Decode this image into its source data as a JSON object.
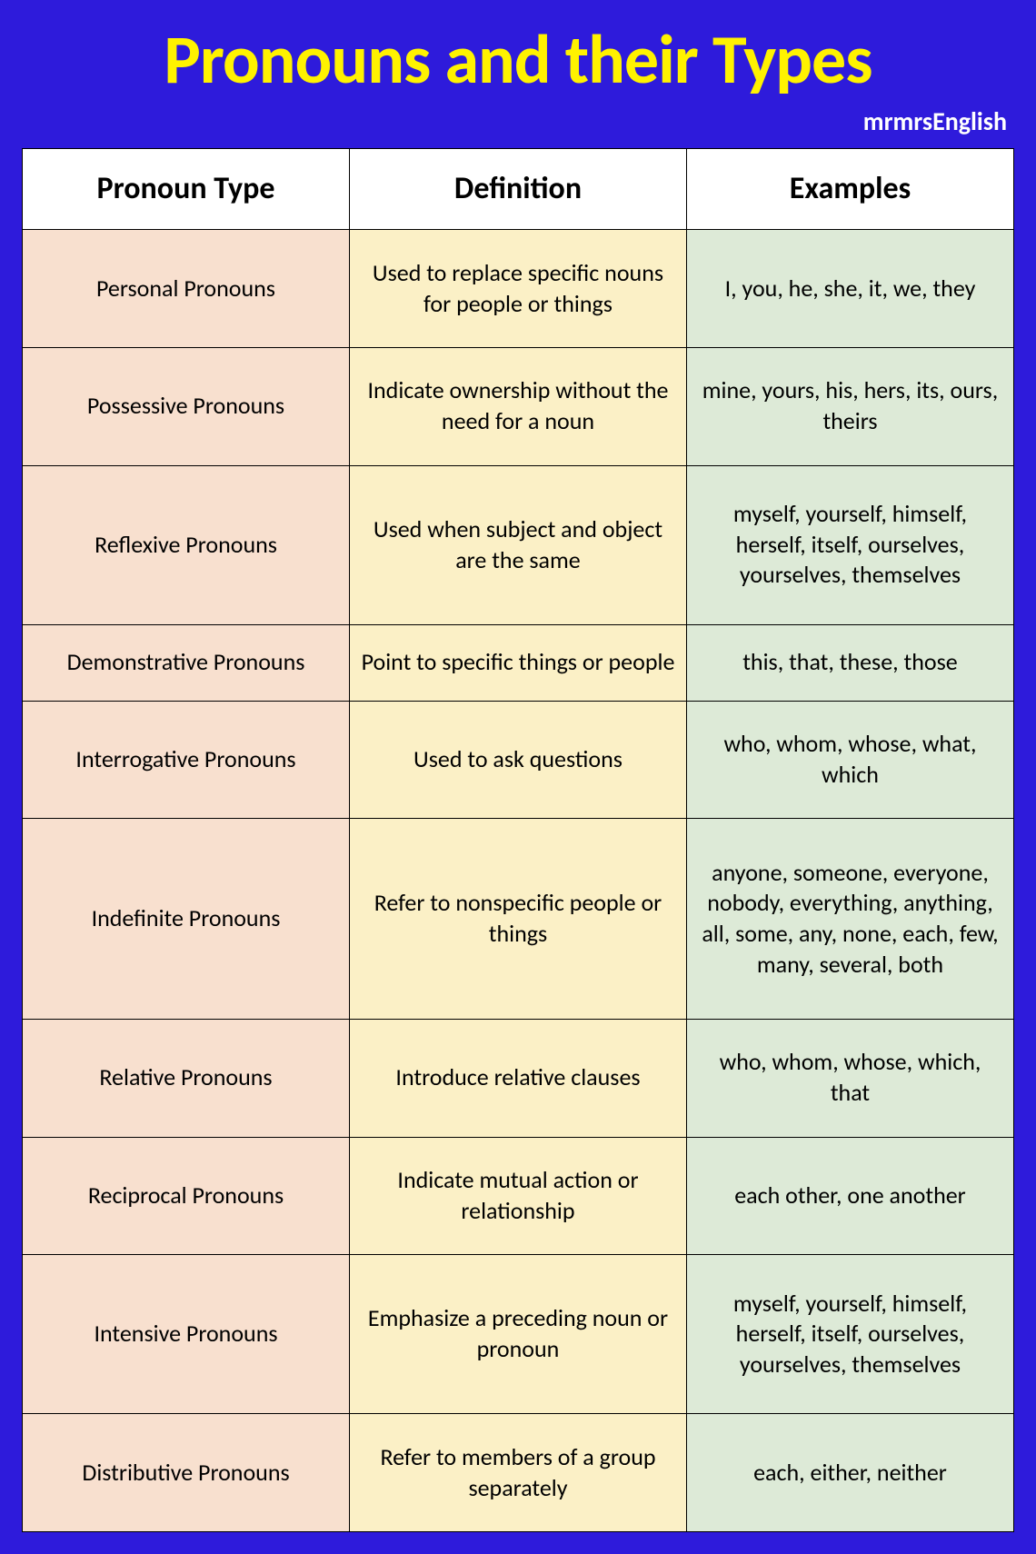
{
  "title": "Pronouns and their Types",
  "subtitle": "mrmrsEnglish",
  "colors": {
    "page_bg": "#2e1bdb",
    "title_color": "#fff200",
    "subtitle_color": "#ffffff",
    "header_bg": "#ffffff",
    "col_type_bg": "#f8e0cf",
    "col_def_bg": "#fbf0c6",
    "col_ex_bg": "#ddead7",
    "border_color": "#000000"
  },
  "typography": {
    "title_fontsize": 76,
    "title_weight": 700,
    "subtitle_fontsize": 28,
    "header_fontsize": 34,
    "cell_fontsize": 26,
    "font_family": "Calibri"
  },
  "table": {
    "columns": [
      "Pronoun Type",
      "Definition",
      "Examples"
    ],
    "column_widths_pct": [
      33,
      34,
      33
    ],
    "rows": [
      {
        "type": "Personal Pronouns",
        "definition": "Used to replace specific nouns for people or things",
        "examples": "I, you, he, she, it, we, they"
      },
      {
        "type": "Possessive Pronouns",
        "definition": "Indicate ownership without the need for a noun",
        "examples": "mine, yours, his, hers, its, ours, theirs"
      },
      {
        "type": "Reflexive Pronouns",
        "definition": "Used when subject and object are the same",
        "examples": "myself, yourself, himself, herself, itself, ourselves, yourselves, themselves"
      },
      {
        "type": "Demonstrative Pronouns",
        "definition": "Point to specific things or people",
        "examples": "this, that, these, those"
      },
      {
        "type": "Interrogative Pronouns",
        "definition": "Used to ask questions",
        "examples": "who, whom, whose, what, which"
      },
      {
        "type": "Indefinite Pronouns",
        "definition": "Refer to nonspecific people or things",
        "examples": "anyone, someone, everyone, nobody, everything, anything, all, some, any, none, each, few, many, several, both"
      },
      {
        "type": "Relative Pronouns",
        "definition": "Introduce relative clauses",
        "examples": "who, whom, whose, which, that"
      },
      {
        "type": "Reciprocal Pronouns",
        "definition": "Indicate mutual action or relationship",
        "examples": "each other, one another"
      },
      {
        "type": "Intensive Pronouns",
        "definition": "Emphasize a preceding noun or pronoun",
        "examples": "myself, yourself, himself, herself, itself, ourselves, yourselves, themselves"
      },
      {
        "type": "Distributive Pronouns",
        "definition": "Refer to members of a group separately",
        "examples": "each, either, neither"
      }
    ]
  }
}
